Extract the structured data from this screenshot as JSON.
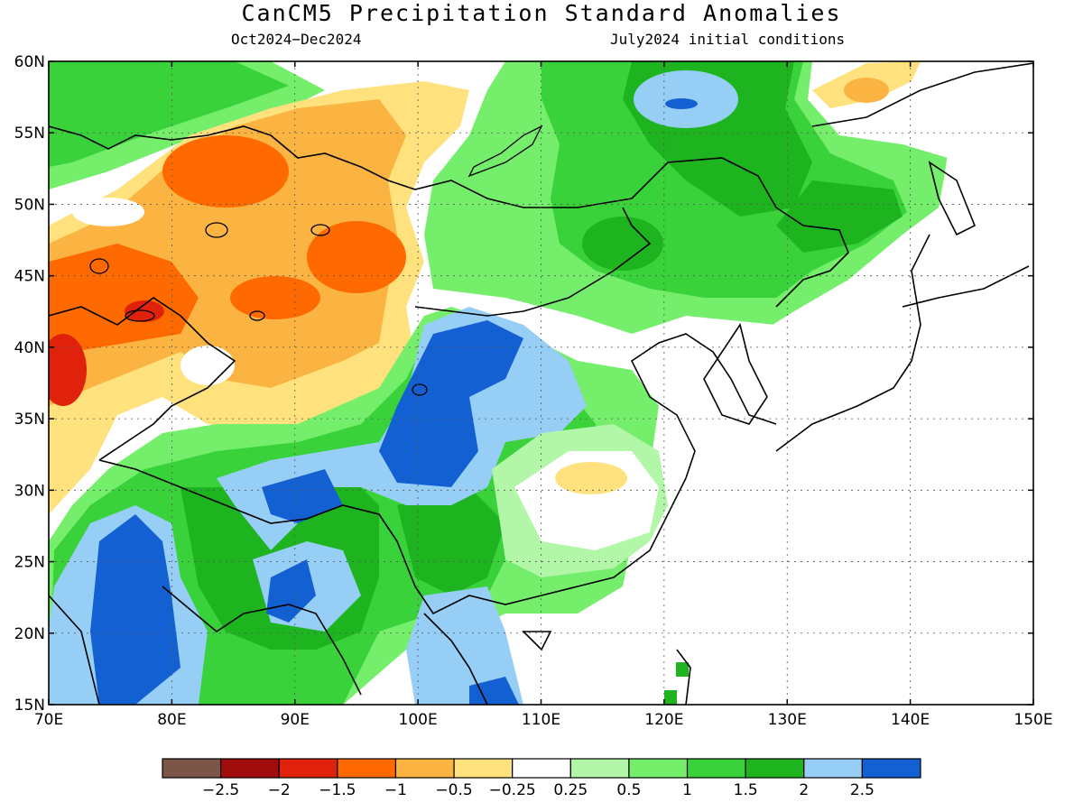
{
  "title": "CanCM5 Precipitation Standard Anomalies",
  "subtitle_left": "Oct2024−Dec2024",
  "subtitle_right": "July2024 initial conditions",
  "map": {
    "lon_ticks": [
      "70E",
      "80E",
      "90E",
      "100E",
      "110E",
      "120E",
      "130E",
      "140E",
      "150E"
    ],
    "lat_ticks": [
      "60N",
      "55N",
      "50N",
      "45N",
      "40N",
      "35N",
      "30N",
      "25N",
      "20N",
      "15N"
    ],
    "gridlines": "dotted"
  },
  "colorbar": {
    "colors": [
      "#7a5548",
      "#a10c0c",
      "#e0220d",
      "#ff6a00",
      "#fbb441",
      "#ffe27d",
      "#ffffff",
      "#b2f6a7",
      "#75ee6c",
      "#3ad23b",
      "#1eb41f",
      "#96cef5",
      "#1360d2"
    ],
    "labels": [
      "−2.5",
      "−2",
      "−1.5",
      "−1",
      "−0.5",
      "−0.25",
      "0.25",
      "0.5",
      "1",
      "1.5",
      "2",
      "2.5"
    ]
  }
}
